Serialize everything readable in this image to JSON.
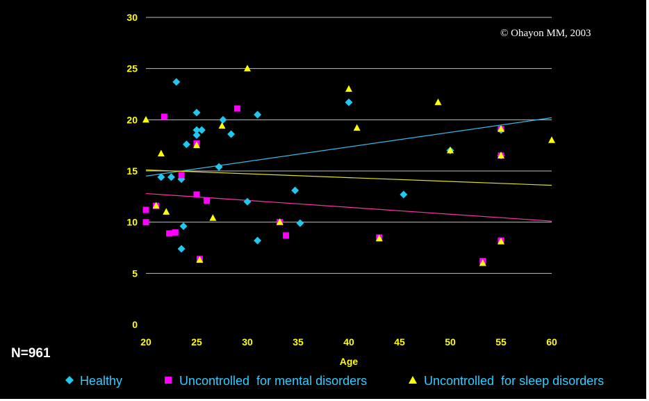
{
  "copyright": "© Ohayon MM, 2003",
  "sample_size": "N=961",
  "colors": {
    "background": "#000000",
    "tick_labels": "#ffff00",
    "gridlines": "#c0c0c0",
    "healthy": "#1ec8f0",
    "mental": "#ff00ff",
    "sleep": "#ffff00",
    "trend_healthy": "#33bbee",
    "trend_mental": "#ff33aa",
    "trend_sleep": "#e0e020",
    "legend_text": "#33ccff"
  },
  "chart_data": {
    "type": "scatter",
    "xlabel": "Age",
    "ylabel": "",
    "xlim": [
      20,
      60
    ],
    "ylim": [
      0,
      30
    ],
    "xticks": [
      "20",
      "25",
      "30",
      "35",
      "40",
      "45",
      "50",
      "55",
      "60"
    ],
    "yticks": [
      "0",
      "5",
      "10",
      "15",
      "20",
      "25",
      "30"
    ],
    "grid": "horizontal",
    "legend_position": "bottom",
    "series": [
      {
        "name": "Healthy",
        "marker": "diamond",
        "points": [
          [
            21.5,
            14.4
          ],
          [
            22.5,
            14.4
          ],
          [
            23,
            23.7
          ],
          [
            23.5,
            14.2
          ],
          [
            23.5,
            7.4
          ],
          [
            23.7,
            9.6
          ],
          [
            24,
            17.6
          ],
          [
            25,
            18.5
          ],
          [
            25,
            19
          ],
          [
            25,
            20.7
          ],
          [
            25.5,
            19
          ],
          [
            27.2,
            15.4
          ],
          [
            27.6,
            20
          ],
          [
            28.4,
            18.6
          ],
          [
            30,
            12
          ],
          [
            31,
            20.5
          ],
          [
            31,
            8.2
          ],
          [
            34.7,
            13.1
          ],
          [
            35.2,
            9.9
          ],
          [
            40,
            21.7
          ],
          [
            45.4,
            12.7
          ],
          [
            50,
            17
          ],
          [
            55,
            19
          ],
          [
            55,
            16.5
          ]
        ],
        "trend": [
          [
            20,
            14.5
          ],
          [
            60,
            20.2
          ]
        ]
      },
      {
        "name": "Uncontrolled  for mental disorders",
        "marker": "square",
        "points": [
          [
            20,
            11.2
          ],
          [
            20,
            10
          ],
          [
            21,
            11.6
          ],
          [
            21.8,
            20.3
          ],
          [
            22.3,
            8.9
          ],
          [
            22.9,
            9
          ],
          [
            23.5,
            14.6
          ],
          [
            25,
            12.7
          ],
          [
            25,
            17.7
          ],
          [
            25.3,
            6.4
          ],
          [
            26,
            12.1
          ],
          [
            29,
            21.1
          ],
          [
            33.2,
            10
          ],
          [
            33.8,
            8.7
          ],
          [
            43,
            8.5
          ],
          [
            53.2,
            6.2
          ],
          [
            55,
            8.2
          ],
          [
            55,
            16.5
          ],
          [
            55,
            19.1
          ]
        ],
        "trend": [
          [
            20,
            12.8
          ],
          [
            60,
            10.1
          ]
        ]
      },
      {
        "name": "Uncontrolled  for sleep disorders",
        "marker": "triangle",
        "points": [
          [
            20,
            20
          ],
          [
            21,
            11.6
          ],
          [
            21.5,
            16.7
          ],
          [
            22,
            11
          ],
          [
            25,
            17.5
          ],
          [
            25.3,
            6.3
          ],
          [
            26.6,
            10.4
          ],
          [
            27.5,
            19.4
          ],
          [
            30,
            25
          ],
          [
            33.2,
            10
          ],
          [
            40,
            23
          ],
          [
            40.8,
            19.2
          ],
          [
            43,
            8.4
          ],
          [
            48.8,
            21.7
          ],
          [
            50,
            17
          ],
          [
            53.2,
            6
          ],
          [
            55,
            19.1
          ],
          [
            55,
            16.5
          ],
          [
            55,
            8.1
          ],
          [
            60,
            18
          ]
        ],
        "trend": [
          [
            20,
            15.1
          ],
          [
            60,
            13.6
          ]
        ]
      }
    ]
  }
}
